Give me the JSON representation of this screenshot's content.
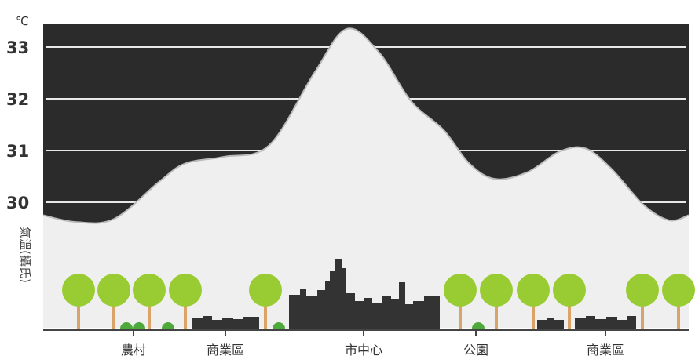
{
  "chart_data": {
    "type": "area",
    "unit": "℃",
    "ylabel": "氣溫(攝氏)",
    "yticks": [
      30,
      31,
      32,
      33
    ],
    "ylim": [
      29.45,
      33.45
    ],
    "categories": [
      "農村",
      "商業區",
      "市中心",
      "公園",
      "商業區"
    ],
    "series": [
      {
        "x": [
          0.0,
          0.05,
          0.11,
          0.18,
          0.22,
          0.28,
          0.35,
          0.42,
          0.47,
          0.52,
          0.57,
          0.62,
          0.66,
          0.7,
          0.75,
          0.8,
          0.84,
          0.88,
          0.93,
          0.97,
          1.0
        ],
        "values": [
          29.75,
          29.62,
          29.68,
          30.4,
          30.75,
          30.88,
          31.1,
          32.5,
          33.35,
          32.9,
          31.95,
          31.4,
          30.75,
          30.45,
          30.58,
          30.98,
          31.04,
          30.65,
          29.95,
          29.65,
          29.75
        ]
      }
    ],
    "background": "#2b2b2b",
    "fill": "#efefef",
    "gridline_color": "#e8e8e8"
  },
  "colors": {
    "tree_crown": "#99cc33",
    "tree_trunk": "#d9a36a",
    "bush": "#4daa3a",
    "building": "#333333",
    "ground_line": "#444444"
  }
}
